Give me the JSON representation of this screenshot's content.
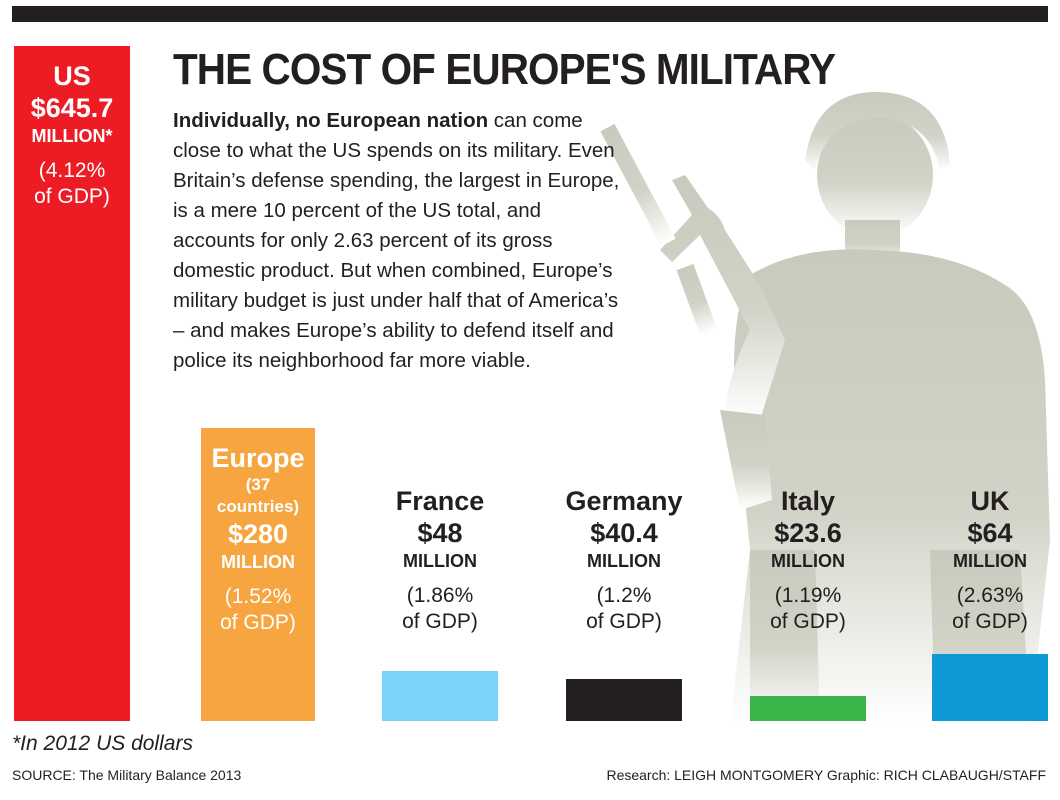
{
  "title": "THE COST OF EUROPE'S MILITARY",
  "intro": {
    "bold": "Individually, no European nation",
    "rest": " can come close to what the US spends on its military. Even Britain’s defense spending, the largest in Europe, is a mere 10 percent of the US total, and accounts for only 2.63 percent of its gross domestic product. But when combined, Europe’s military budget is just under half that of America’s – and makes Europe’s ability to defend itself and police its neighborhood far more viable."
  },
  "chart_data": {
    "type": "bar",
    "title": "THE COST OF EUROPE'S MILITARY",
    "categories": [
      "US",
      "Europe",
      "France",
      "Germany",
      "Italy",
      "UK"
    ],
    "values": [
      645.7,
      280,
      48,
      40.4,
      23.6,
      64
    ],
    "unit": "MILLION",
    "gdp_share": [
      "4.12%",
      "1.52%",
      "1.86%",
      "1.2%",
      "1.19%",
      "2.63%"
    ],
    "bars": [
      {
        "name": "US",
        "sub": "",
        "amount": "$645.7",
        "unit": "MILLION*",
        "gdp_line1": "(4.12%",
        "gdp_line2": "of GDP)",
        "value": 645.7,
        "color": "#ed1c24",
        "label_inside": true
      },
      {
        "name": "Europe",
        "sub": "(37\ncountries)",
        "amount": "$280",
        "unit": "MILLION",
        "gdp_line1": "(1.52%",
        "gdp_line2": "of GDP)",
        "value": 280,
        "color": "#f7a541",
        "label_inside": true
      },
      {
        "name": "France",
        "sub": "",
        "amount": "$48",
        "unit": "MILLION",
        "gdp_line1": "(1.86%",
        "gdp_line2": "of GDP)",
        "value": 48,
        "color": "#7dd3f7",
        "label_inside": false
      },
      {
        "name": "Germany",
        "sub": "",
        "amount": "$40.4",
        "unit": "MILLION",
        "gdp_line1": "(1.2%",
        "gdp_line2": "of GDP)",
        "value": 40.4,
        "color": "#231f20",
        "label_inside": false
      },
      {
        "name": "Italy",
        "sub": "",
        "amount": "$23.6",
        "unit": "MILLION",
        "gdp_line1": "(1.19%",
        "gdp_line2": "of GDP)",
        "value": 23.6,
        "color": "#39b54a",
        "label_inside": false
      },
      {
        "name": "UK",
        "sub": "",
        "amount": "$64",
        "unit": "MILLION",
        "gdp_line1": "(2.63%",
        "gdp_line2": "of GDP)",
        "value": 64,
        "color": "#0e9ad7",
        "label_inside": false
      }
    ],
    "xlabel": "",
    "ylabel": "",
    "ylim": [
      0,
      645.7
    ]
  },
  "footnote": "*In 2012 US dollars",
  "source": "SOURCE: The Military Balance 2013",
  "credit": "Research: LEIGH MONTGOMERY Graphic: RICH CLABAUGH/STAFF"
}
